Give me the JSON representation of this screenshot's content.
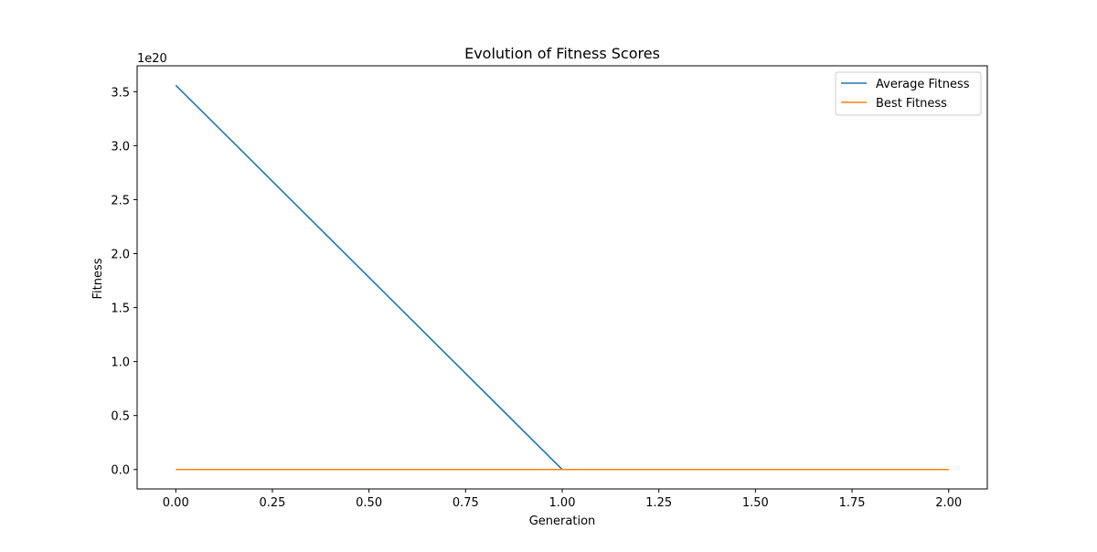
{
  "chart_data": {
    "type": "line",
    "title": "Evolution of Fitness Scores",
    "xlabel": "Generation",
    "ylabel": "Fitness",
    "y_offset_text": "1e20",
    "y_scale_factor": 1e+20,
    "xlim": [
      -0.1,
      2.1
    ],
    "ylim": [
      -1.8e+19,
      3.74e+20
    ],
    "x_ticks": [
      0.0,
      0.25,
      0.5,
      0.75,
      1.0,
      1.25,
      1.5,
      1.75,
      2.0
    ],
    "x_tick_labels": [
      "0.00",
      "0.25",
      "0.50",
      "0.75",
      "1.00",
      "1.25",
      "1.50",
      "1.75",
      "2.00"
    ],
    "y_ticks": [
      0,
      5e+19,
      1e+20,
      1.5e+20,
      2e+20,
      2.5e+20,
      3e+20,
      3.5e+20
    ],
    "y_tick_labels": [
      "0.0",
      "0.5",
      "1.0",
      "1.5",
      "2.0",
      "2.5",
      "3.0",
      "3.5"
    ],
    "grid": false,
    "legend_position": "top-right",
    "x": [
      0,
      1,
      2
    ],
    "series": [
      {
        "name": "Average Fitness",
        "color": "#1f77b4",
        "values": [
          3.56e+20,
          0,
          0
        ]
      },
      {
        "name": "Best Fitness",
        "color": "#ff7f0e",
        "values": [
          0,
          0,
          0
        ]
      }
    ]
  }
}
